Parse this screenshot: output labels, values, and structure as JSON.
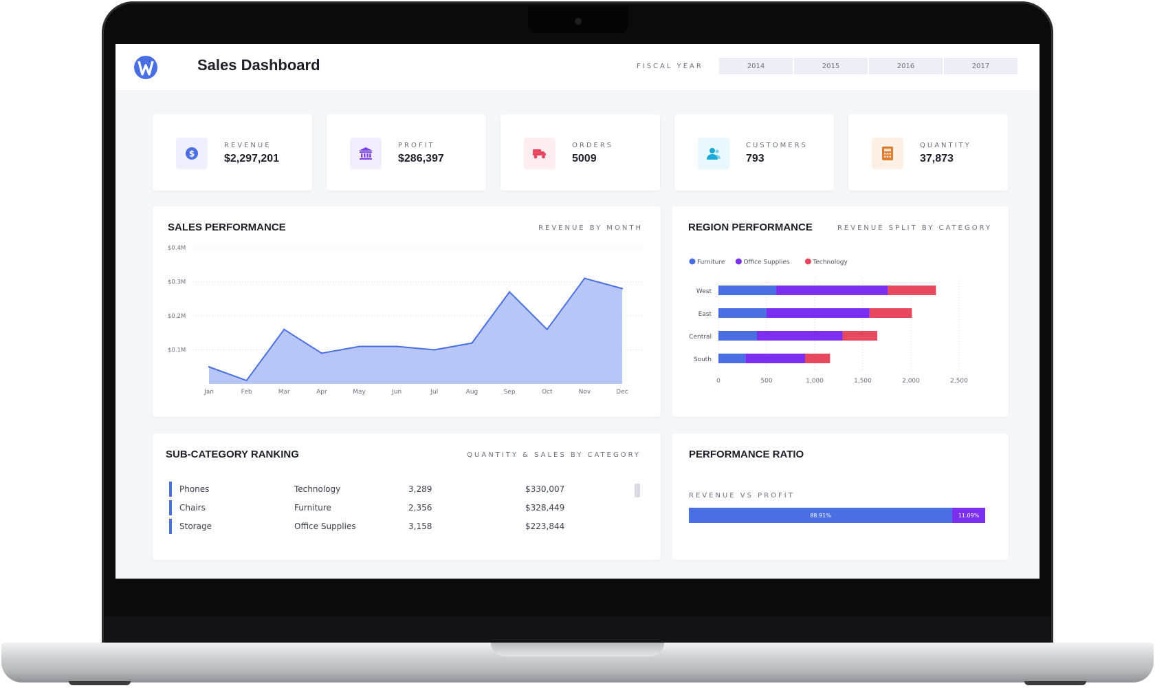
{
  "app": {
    "title": "Sales Dashboard"
  },
  "fiscal_year": {
    "label": "FISCAL YEAR",
    "years": [
      "2014",
      "2015",
      "2016",
      "2017"
    ]
  },
  "kpis": [
    {
      "label": "REVENUE",
      "value": "$2,297,201",
      "icon": "dollar-icon",
      "color": "#4a6fe3",
      "bg": "#eef1fd"
    },
    {
      "label": "PROFIT",
      "value": "$286,397",
      "icon": "bank-icon",
      "color": "#7b3fe4",
      "bg": "#f2ecfd"
    },
    {
      "label": "ORDERS",
      "value": "5009",
      "icon": "truck-icon",
      "color": "#e8485e",
      "bg": "#fdeef0"
    },
    {
      "label": "CUSTOMERS",
      "value": "793",
      "icon": "users-icon",
      "color": "#1aa8d8",
      "bg": "#e9f8fd"
    },
    {
      "label": "QUANTITY",
      "value": "37,873",
      "icon": "calculator-icon",
      "color": "#e07a2c",
      "bg": "#fdf0e7"
    }
  ],
  "sales_performance": {
    "title": "SALES PERFORMANCE",
    "subtitle": "REVENUE BY MONTH"
  },
  "region_performance": {
    "title": "REGION PERFORMANCE",
    "subtitle": "REVENUE SPLIT BY CATEGORY"
  },
  "sub_category": {
    "title": "SUB-CATEGORY RANKING",
    "subtitle": "QUANTITY & SALES BY CATEGORY",
    "rows": [
      {
        "name": "Phones",
        "category": "Technology",
        "quantity": "3,289",
        "sales": "$330,007"
      },
      {
        "name": "Chairs",
        "category": "Furniture",
        "quantity": "2,356",
        "sales": "$328,449"
      },
      {
        "name": "Storage",
        "category": "Office Supplies",
        "quantity": "3,158",
        "sales": "$223,844"
      }
    ]
  },
  "performance_ratio": {
    "title": "PERFORMANCE RATIO",
    "label": "REVENUE VS PROFIT",
    "segments": [
      {
        "value": 88.91,
        "text": "88.91%",
        "color": "#4a6fe3"
      },
      {
        "value": 11.09,
        "text": "11.09%",
        "color": "#7b2ff0"
      }
    ]
  },
  "chart_data": [
    {
      "type": "area",
      "title": "",
      "xlabel": "",
      "ylabel": "",
      "categories": [
        "Jan",
        "Feb",
        "Mar",
        "Apr",
        "May",
        "Jun",
        "Jul",
        "Aug",
        "Sep",
        "Oct",
        "Nov",
        "Dec"
      ],
      "values": [
        0.05,
        0.01,
        0.16,
        0.09,
        0.11,
        0.11,
        0.1,
        0.12,
        0.27,
        0.16,
        0.31,
        0.28
      ],
      "ylim": [
        0,
        0.4
      ],
      "y_ticks": [
        0.1,
        0.2,
        0.3,
        0.4
      ],
      "y_tick_labels": [
        "$0.1M",
        "$0.2M",
        "$0.3M",
        "$0.4M"
      ],
      "grid": true,
      "color": "#4a6fe3",
      "fill": "#b4c3f7"
    },
    {
      "type": "bar",
      "orientation": "horizontal",
      "stacked": true,
      "title": "",
      "categories": [
        "West",
        "East",
        "Central",
        "South"
      ],
      "series": [
        {
          "name": "Furniture",
          "color": "#4a6fe3",
          "values": [
            600,
            500,
            400,
            280
          ]
        },
        {
          "name": "Office Supplies",
          "color": "#7b2ff0",
          "values": [
            1160,
            1070,
            890,
            620
          ]
        },
        {
          "name": "Technology",
          "color": "#e8485e",
          "values": [
            500,
            440,
            360,
            260
          ]
        }
      ],
      "xlim": [
        0,
        2500
      ],
      "x_ticks": [
        0,
        500,
        1000,
        1500,
        2000,
        2500
      ],
      "x_tick_labels": [
        "0",
        "500",
        "1,000",
        "1,500",
        "2,000",
        "2,500"
      ],
      "legend": "top-left",
      "grid": true
    }
  ]
}
